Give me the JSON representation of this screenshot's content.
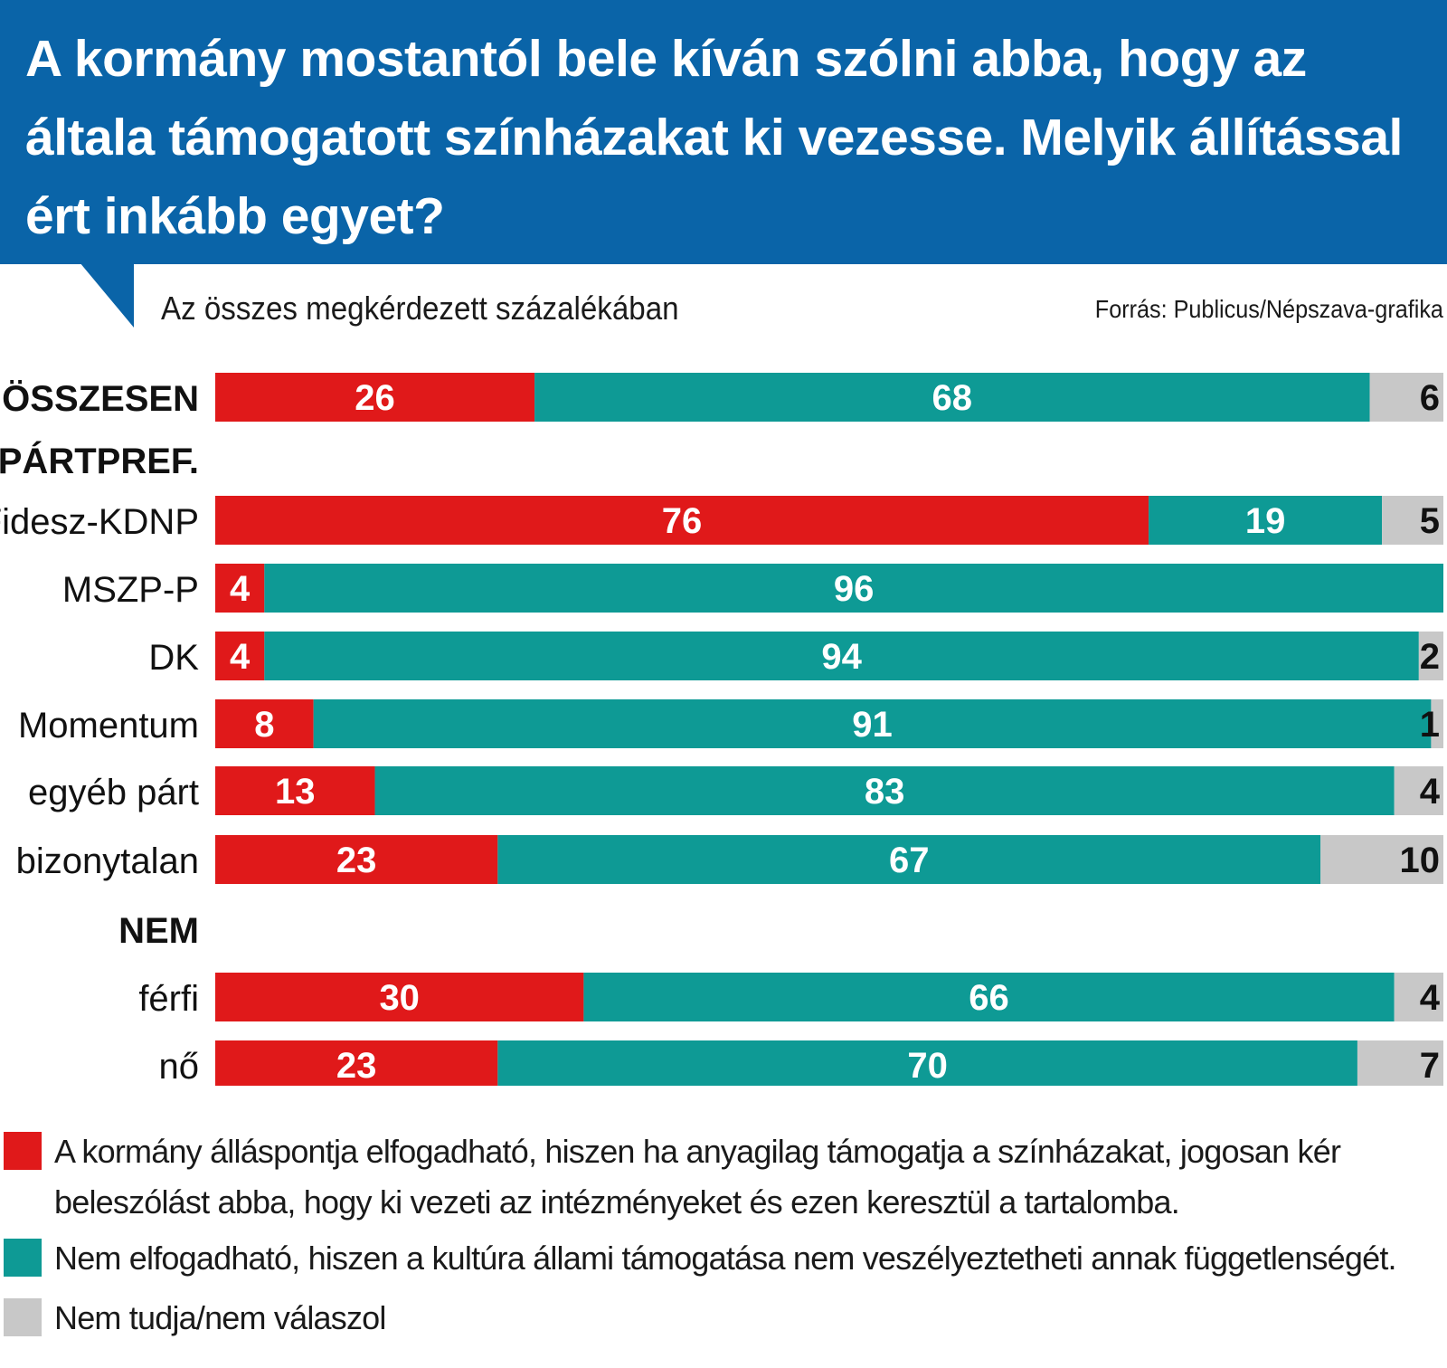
{
  "header": {
    "title": "A kormány mostantól bele kíván szólni abba, hogy az általa támogatott színházakat ki vezesse. Melyik állítással ért inkább egyet?"
  },
  "subtitle": "Az összes megkérdezett százalékában",
  "source": "Forrás: Publicus/Népszava-grafika",
  "colors": {
    "header_bg": "#0a64a8",
    "agree": "#e0191a",
    "disagree": "#0e9a95",
    "unknown": "#c8c8c8"
  },
  "legend": [
    {
      "color": "#e0191a",
      "label": "A kormány álláspontja elfogadható, hiszen ha anyagilag támogatja a színházakat, jogosan kér beleszólást abba, hogy ki vezeti az intézményeket és ezen keresztül a tartalomba."
    },
    {
      "color": "#0e9a95",
      "label": "Nem elfogadható, hiszen a kultúra állami támogatása nem veszélyeztetheti annak függetlenségét."
    },
    {
      "color": "#c8c8c8",
      "label": "Nem tudja/nem válaszol"
    }
  ],
  "chart_data": {
    "type": "bar",
    "orientation": "horizontal",
    "stacked": true,
    "xlim": [
      0,
      100
    ],
    "series": [
      {
        "name": "A kormány álláspontja elfogadható",
        "color": "#e0191a"
      },
      {
        "name": "Nem elfogadható",
        "color": "#0e9a95"
      },
      {
        "name": "Nem tudja/nem válaszol",
        "color": "#c8c8c8"
      }
    ],
    "rows": [
      {
        "kind": "bar",
        "label": "ÖSSZESEN",
        "bold": true,
        "values": [
          26,
          68,
          6
        ]
      },
      {
        "kind": "header",
        "label": "PÁRTPREF."
      },
      {
        "kind": "bar",
        "label": "Fidesz-KDNP",
        "values": [
          76,
          19,
          5
        ]
      },
      {
        "kind": "bar",
        "label": "MSZP-P",
        "values": [
          4,
          96
        ]
      },
      {
        "kind": "bar",
        "label": "DK",
        "values": [
          4,
          94,
          2
        ]
      },
      {
        "kind": "bar",
        "label": "Momentum",
        "values": [
          8,
          91,
          1
        ]
      },
      {
        "kind": "bar",
        "label": "egyéb párt",
        "values": [
          13,
          83,
          4
        ]
      },
      {
        "kind": "bar",
        "label": "bizonytalan",
        "values": [
          23,
          67,
          10
        ]
      },
      {
        "kind": "header",
        "label": "NEM"
      },
      {
        "kind": "bar",
        "label": "férfi",
        "values": [
          30,
          66,
          4
        ]
      },
      {
        "kind": "bar",
        "label": "nő",
        "values": [
          23,
          70,
          7
        ]
      }
    ]
  }
}
